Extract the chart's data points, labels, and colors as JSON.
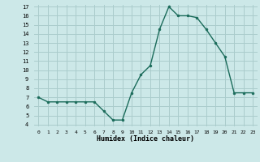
{
  "x": [
    0,
    1,
    2,
    3,
    4,
    5,
    6,
    7,
    8,
    9,
    10,
    11,
    12,
    13,
    14,
    15,
    16,
    17,
    18,
    19,
    20,
    21,
    22,
    23
  ],
  "y": [
    7.0,
    6.5,
    6.5,
    6.5,
    6.5,
    6.5,
    6.5,
    5.5,
    4.5,
    4.5,
    7.5,
    9.5,
    10.5,
    14.5,
    17.0,
    16.0,
    16.0,
    15.8,
    14.5,
    13.0,
    11.5,
    7.5,
    7.5,
    7.5
  ],
  "xlabel": "Humidex (Indice chaleur)",
  "ylim_min": 4,
  "ylim_max": 17,
  "xlim_min": 0,
  "xlim_max": 23,
  "bg_color": "#cce8e8",
  "grid_color": "#aacccc",
  "line_color": "#1a6b5a",
  "marker_color": "#1a6b5a",
  "yticks": [
    4,
    5,
    6,
    7,
    8,
    9,
    10,
    11,
    12,
    13,
    14,
    15,
    16,
    17
  ],
  "xticks": [
    0,
    1,
    2,
    3,
    4,
    5,
    6,
    7,
    8,
    9,
    10,
    11,
    12,
    13,
    14,
    15,
    16,
    17,
    18,
    19,
    20,
    21,
    22,
    23
  ]
}
